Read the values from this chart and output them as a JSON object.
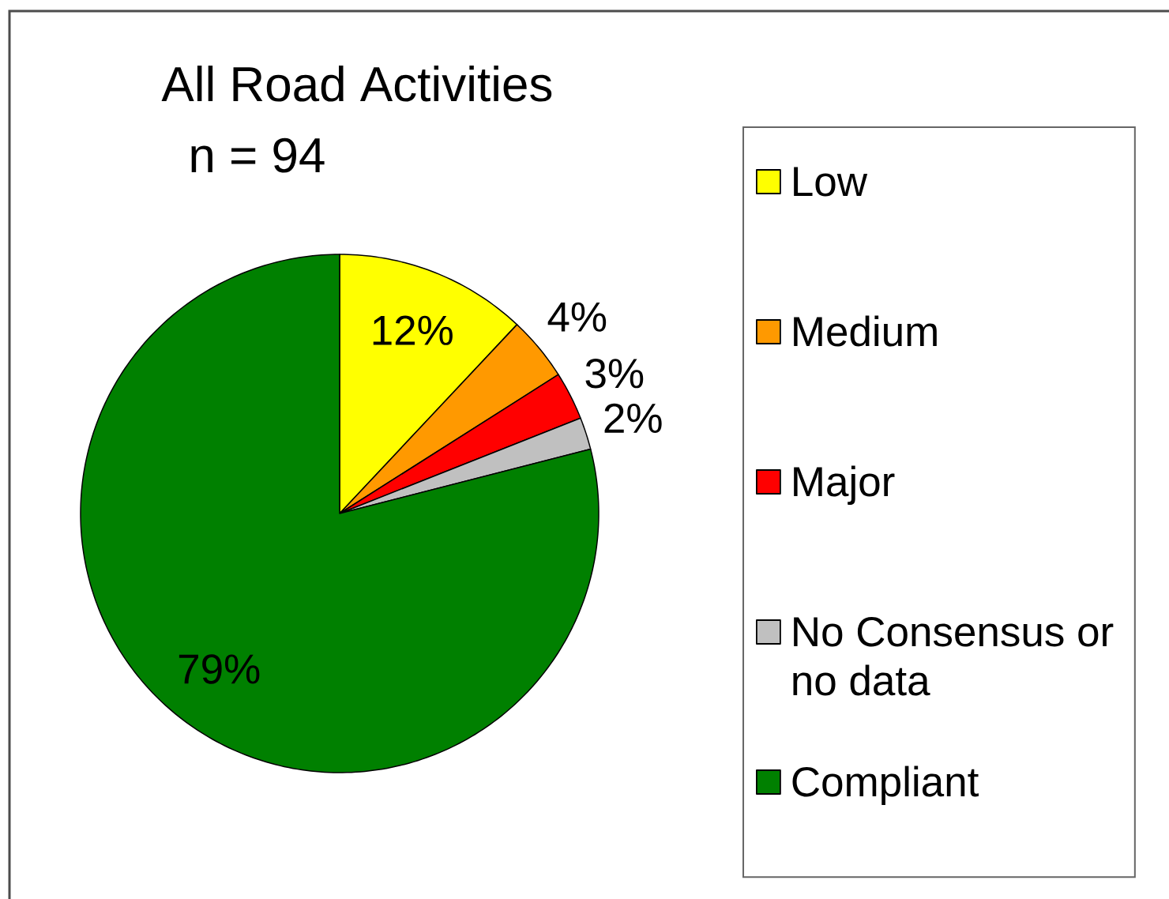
{
  "chart_data": {
    "type": "pie",
    "title": "All Road Activities",
    "subtitle": "n = 94",
    "categories": [
      "Low",
      "Medium",
      "Major",
      "No Consensus or no data",
      "Compliant"
    ],
    "values": [
      12,
      4,
      3,
      2,
      79
    ],
    "colors": [
      "#ffff00",
      "#ff9900",
      "#ff0000",
      "#c0c0c0",
      "#008000"
    ],
    "value_labels": [
      "12%",
      "4%",
      "3%",
      "2%",
      "79%"
    ],
    "legend": "right"
  }
}
